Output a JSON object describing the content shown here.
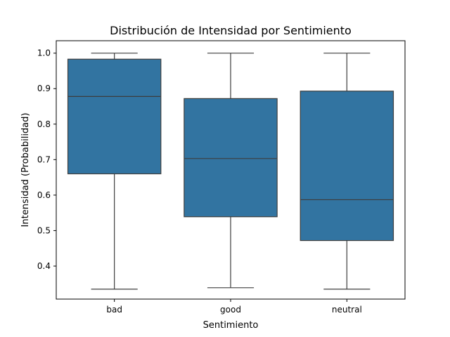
{
  "chart_data": {
    "type": "box",
    "title": "Distribución de Intensidad por Sentimiento",
    "xlabel": "Sentimiento",
    "ylabel": "Intensidad (Probabilidad)",
    "categories": [
      "bad",
      "good",
      "neutral"
    ],
    "ylim": [
      0.307,
      1.035
    ],
    "yticks": [
      0.4,
      0.5,
      0.6,
      0.7,
      0.8,
      0.9,
      1.0
    ],
    "ytick_labels": [
      "0.4",
      "0.5",
      "0.6",
      "0.7",
      "0.8",
      "0.9",
      "1.0"
    ],
    "color": "#3274a1",
    "boxes": [
      {
        "category": "bad",
        "min": 0.335,
        "q1": 0.66,
        "median": 0.878,
        "q3": 0.983,
        "max": 1.0
      },
      {
        "category": "good",
        "min": 0.339,
        "q1": 0.539,
        "median": 0.703,
        "q3": 0.872,
        "max": 1.0
      },
      {
        "category": "neutral",
        "min": 0.335,
        "q1": 0.472,
        "median": 0.587,
        "q3": 0.893,
        "max": 1.0
      }
    ],
    "grid": false,
    "legend": "none"
  }
}
